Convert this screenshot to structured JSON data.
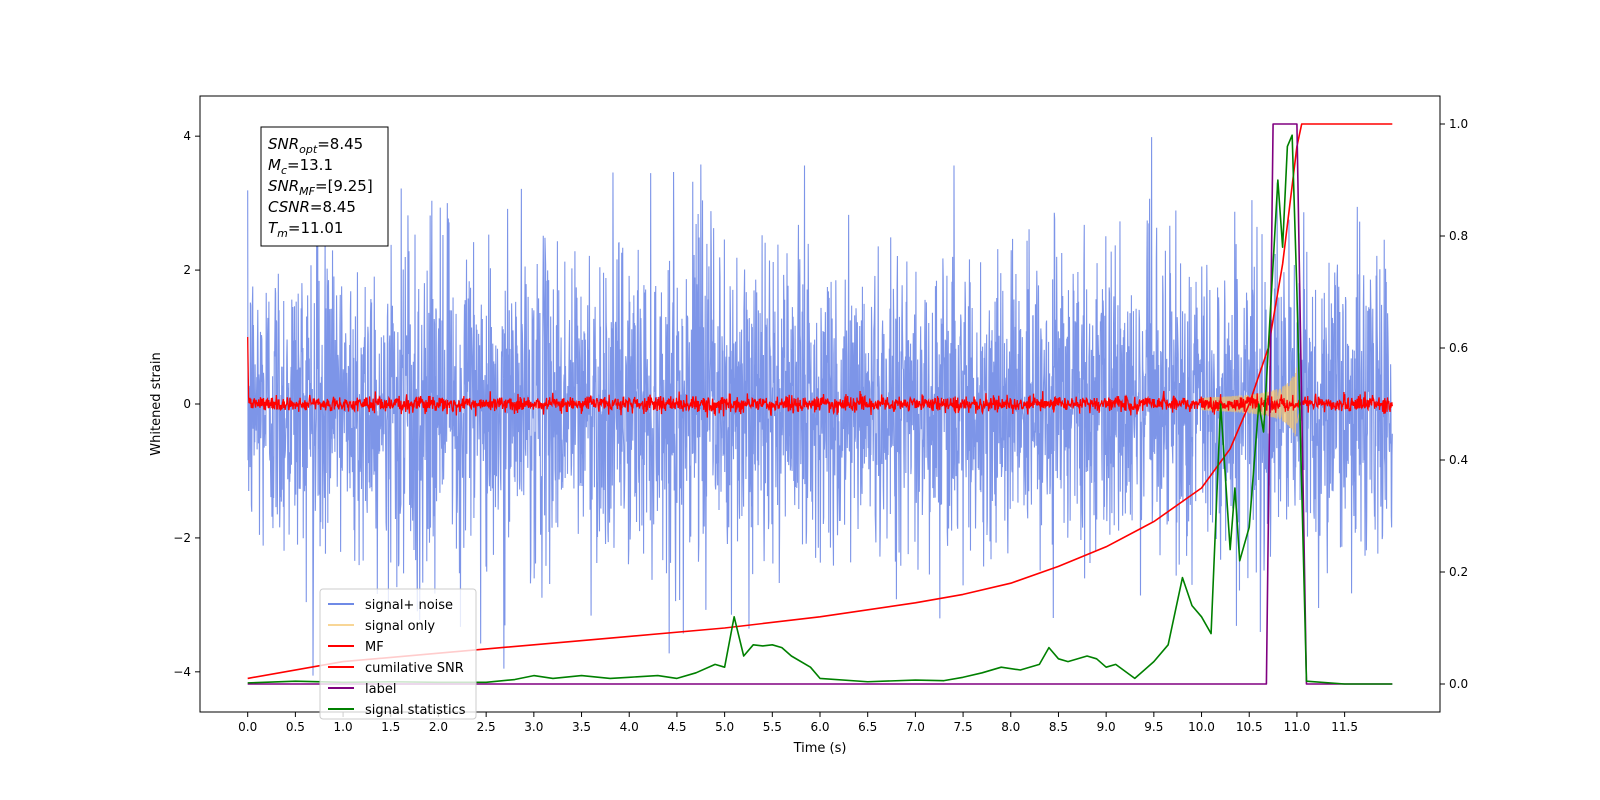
{
  "chart_data": {
    "type": "line",
    "xlabel": "Time (s)",
    "ylabel_left": "Whitened strain",
    "ylabel_right": "",
    "xlim": [
      -0.5,
      12.5
    ],
    "ylim_left": [
      -4.6,
      4.6
    ],
    "ylim_right": [
      -0.05,
      1.05
    ],
    "x_ticks": [
      0.0,
      0.5,
      1.0,
      1.5,
      2.0,
      2.5,
      3.0,
      3.5,
      4.0,
      4.5,
      5.0,
      5.5,
      6.0,
      6.5,
      7.0,
      7.5,
      8.0,
      8.5,
      9.0,
      9.5,
      10.0,
      10.5,
      11.0,
      11.5
    ],
    "x_tick_labels": [
      "0.0",
      "0.5",
      "1.0",
      "1.5",
      "2.0",
      "2.5",
      "3.0",
      "3.5",
      "4.0",
      "4.5",
      "5.0",
      "5.5",
      "6.0",
      "6.5",
      "7.0",
      "7.5",
      "8.0",
      "8.5",
      "9.0",
      "9.5",
      "10.0",
      "10.5",
      "11.0",
      "11.5"
    ],
    "y_ticks_left": [
      -4,
      -2,
      0,
      2,
      4
    ],
    "y_tick_labels_left": [
      "−4",
      "−2",
      "0",
      "2",
      "4"
    ],
    "y_ticks_right": [
      0.0,
      0.2,
      0.4,
      0.6,
      0.8,
      1.0
    ],
    "y_tick_labels_right": [
      "0.0",
      "0.2",
      "0.4",
      "0.6",
      "0.8",
      "1.0"
    ],
    "grid": false,
    "legend_position": "lower-left",
    "info_box": {
      "lines": [
        {
          "sym": "SNR",
          "sub": "opt",
          "rest": "=8.45"
        },
        {
          "sym": "M",
          "sub": "c",
          "rest": "=13.1"
        },
        {
          "sym": "SNR",
          "sub": "MF",
          "rest": "=[9.25]"
        },
        {
          "sym": "CSNR",
          "sub": "",
          "rest": "=8.45"
        },
        {
          "sym": "T",
          "sub": "m",
          "rest": "=11.01"
        }
      ]
    },
    "series": [
      {
        "name": "signal+ noise",
        "axis": "left",
        "color": "#6f8ae6",
        "kind": "noise",
        "t_start": 0.0,
        "t_end": 12.0,
        "sigma": 1.15,
        "max_abs": 4.1
      },
      {
        "name": "signal only",
        "axis": "left",
        "color": "#f5c56a",
        "kind": "chirp",
        "t_start": 10.0,
        "t_peak": 11.0,
        "t_end": 11.05,
        "peak_amplitude": 0.6
      },
      {
        "name": "MF",
        "axis": "left",
        "color": "#ff0000",
        "kind": "noise",
        "t_start": 0.0,
        "t_end": 12.0,
        "sigma": 0.06,
        "max_abs": 0.4,
        "start_spike": 1.0
      },
      {
        "name": "cumilative SNR",
        "axis": "right",
        "color": "#ff0000",
        "kind": "curve",
        "points": [
          [
            0.0,
            0.01
          ],
          [
            1.0,
            0.04
          ],
          [
            2.0,
            0.055
          ],
          [
            3.0,
            0.07
          ],
          [
            4.0,
            0.085
          ],
          [
            5.0,
            0.1
          ],
          [
            6.0,
            0.12
          ],
          [
            7.0,
            0.145
          ],
          [
            7.5,
            0.16
          ],
          [
            8.0,
            0.18
          ],
          [
            8.5,
            0.21
          ],
          [
            9.0,
            0.245
          ],
          [
            9.5,
            0.29
          ],
          [
            10.0,
            0.35
          ],
          [
            10.3,
            0.42
          ],
          [
            10.5,
            0.5
          ],
          [
            10.7,
            0.6
          ],
          [
            10.85,
            0.75
          ],
          [
            11.0,
            0.96
          ],
          [
            11.05,
            1.0
          ],
          [
            12.0,
            1.0
          ]
        ]
      },
      {
        "name": "label",
        "axis": "right",
        "color": "#800080",
        "kind": "curve",
        "points": [
          [
            0.0,
            0.0
          ],
          [
            10.68,
            0.0
          ],
          [
            10.75,
            1.0
          ],
          [
            11.0,
            1.0
          ],
          [
            11.1,
            0.0
          ],
          [
            12.0,
            0.0
          ]
        ]
      },
      {
        "name": "signal statistics",
        "axis": "right",
        "color": "#008000",
        "kind": "curve",
        "points": [
          [
            0.0,
            0.002
          ],
          [
            0.5,
            0.005
          ],
          [
            1.0,
            0.003
          ],
          [
            1.5,
            0.004
          ],
          [
            2.0,
            0.003
          ],
          [
            2.5,
            0.003
          ],
          [
            2.8,
            0.008
          ],
          [
            3.0,
            0.015
          ],
          [
            3.2,
            0.01
          ],
          [
            3.5,
            0.015
          ],
          [
            3.8,
            0.01
          ],
          [
            4.0,
            0.012
          ],
          [
            4.3,
            0.015
          ],
          [
            4.5,
            0.01
          ],
          [
            4.7,
            0.02
          ],
          [
            4.9,
            0.035
          ],
          [
            5.0,
            0.03
          ],
          [
            5.1,
            0.12
          ],
          [
            5.2,
            0.05
          ],
          [
            5.3,
            0.07
          ],
          [
            5.4,
            0.068
          ],
          [
            5.5,
            0.07
          ],
          [
            5.6,
            0.065
          ],
          [
            5.7,
            0.05
          ],
          [
            5.9,
            0.03
          ],
          [
            6.0,
            0.01
          ],
          [
            6.5,
            0.004
          ],
          [
            7.0,
            0.007
          ],
          [
            7.3,
            0.006
          ],
          [
            7.5,
            0.012
          ],
          [
            7.7,
            0.02
          ],
          [
            7.9,
            0.03
          ],
          [
            8.1,
            0.025
          ],
          [
            8.3,
            0.035
          ],
          [
            8.4,
            0.065
          ],
          [
            8.5,
            0.045
          ],
          [
            8.6,
            0.04
          ],
          [
            8.8,
            0.05
          ],
          [
            8.9,
            0.045
          ],
          [
            9.0,
            0.03
          ],
          [
            9.1,
            0.035
          ],
          [
            9.3,
            0.01
          ],
          [
            9.5,
            0.04
          ],
          [
            9.65,
            0.07
          ],
          [
            9.8,
            0.19
          ],
          [
            9.9,
            0.14
          ],
          [
            10.0,
            0.12
          ],
          [
            10.1,
            0.09
          ],
          [
            10.2,
            0.5
          ],
          [
            10.3,
            0.24
          ],
          [
            10.35,
            0.35
          ],
          [
            10.4,
            0.22
          ],
          [
            10.5,
            0.28
          ],
          [
            10.6,
            0.5
          ],
          [
            10.65,
            0.45
          ],
          [
            10.8,
            0.9
          ],
          [
            10.85,
            0.78
          ],
          [
            10.9,
            0.96
          ],
          [
            10.95,
            0.98
          ],
          [
            11.0,
            0.7
          ],
          [
            11.1,
            0.005
          ],
          [
            11.5,
            0.0
          ],
          [
            12.0,
            0.0
          ]
        ]
      }
    ]
  }
}
